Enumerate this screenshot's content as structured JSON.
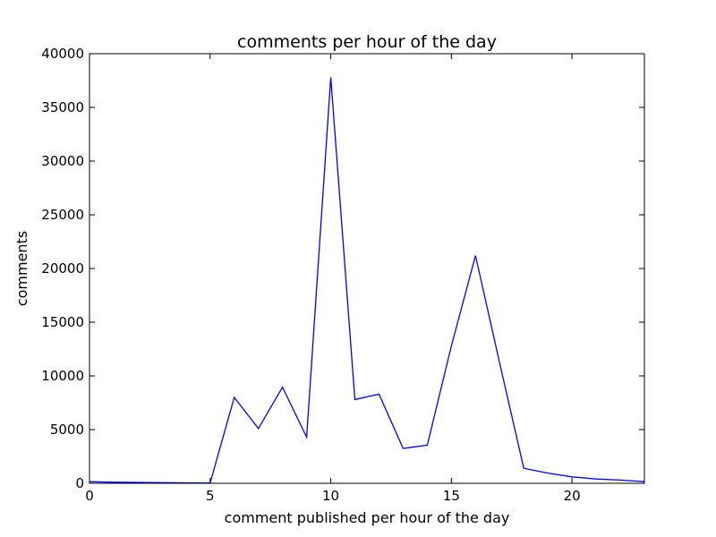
{
  "chart_data": {
    "type": "line",
    "title": "comments per hour of the day",
    "xlabel": "comment published per hour of the day",
    "ylabel": "comments",
    "xlim": [
      0,
      23
    ],
    "ylim": [
      0,
      40000
    ],
    "xticks": [
      0,
      5,
      10,
      15,
      20
    ],
    "yticks": [
      0,
      5000,
      10000,
      15000,
      20000,
      25000,
      30000,
      35000,
      40000
    ],
    "grid": false,
    "legend": "none",
    "series": [
      {
        "color": "#0000ff",
        "x": [
          0,
          1,
          2,
          3,
          4,
          5,
          6,
          7,
          8,
          9,
          10,
          11,
          12,
          13,
          14,
          15,
          16,
          17,
          18,
          19,
          20,
          21,
          22,
          23
        ],
        "y": [
          150,
          100,
          80,
          60,
          40,
          30,
          8000,
          5100,
          8950,
          4300,
          37800,
          7800,
          8300,
          3250,
          3550,
          12800,
          21200,
          11200,
          1400,
          950,
          600,
          400,
          300,
          150
        ]
      }
    ]
  }
}
